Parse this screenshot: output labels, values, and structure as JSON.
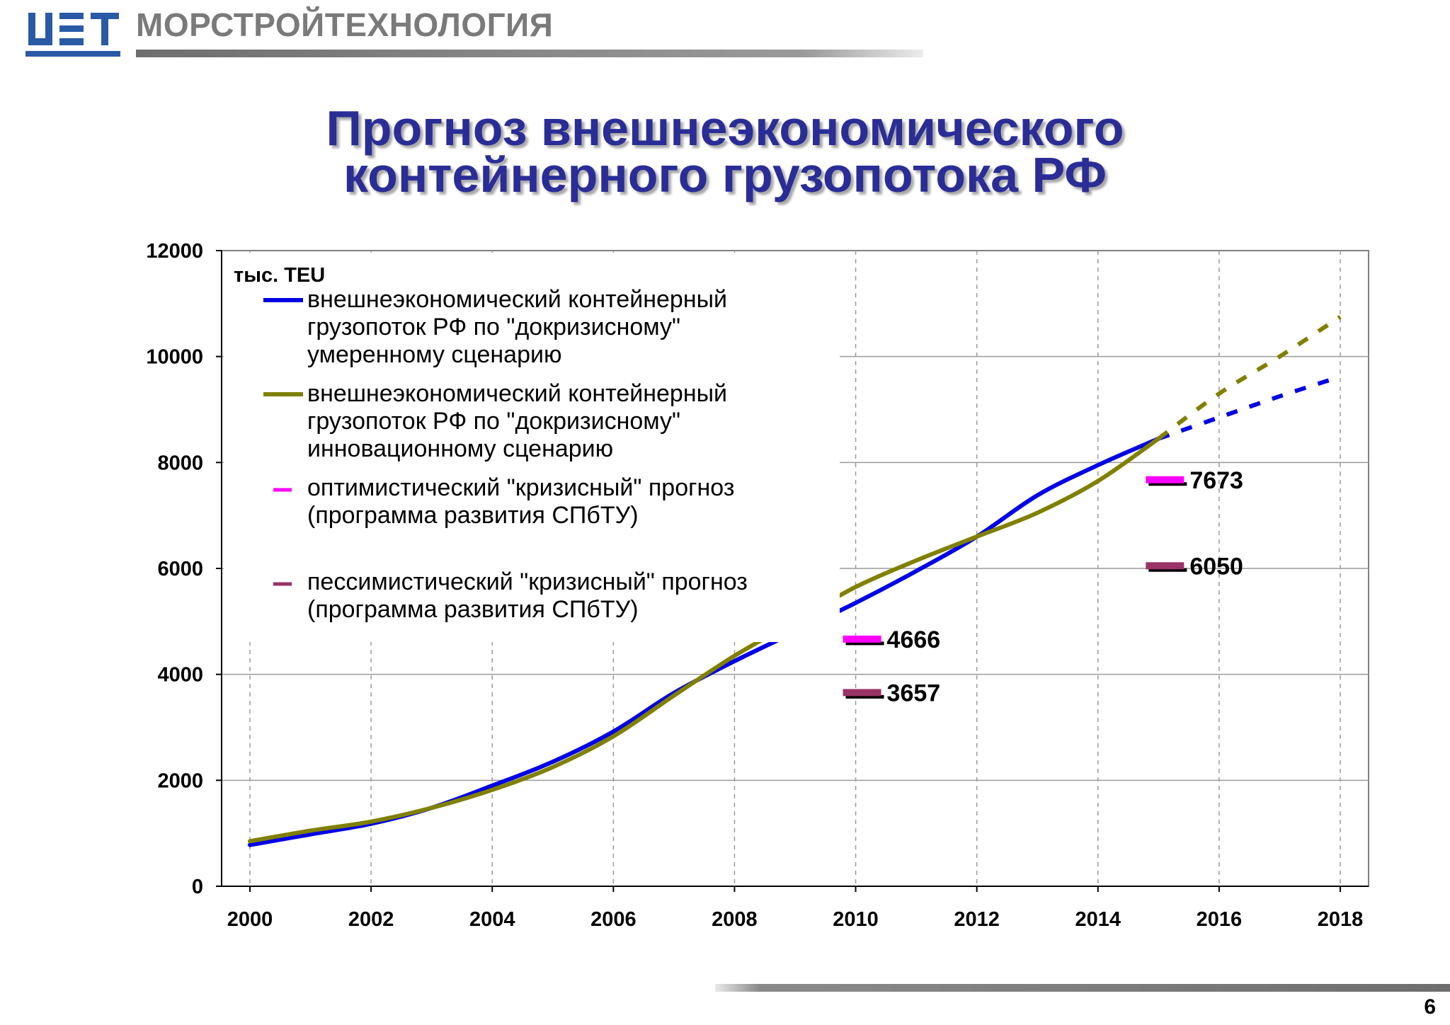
{
  "header": {
    "company": "МОРСТРОЙТЕХНОЛОГИЯ",
    "logo": "mst-logo"
  },
  "title_line1": "Прогноз внешнеэкономического",
  "title_line2": "контейнерного грузопотока РФ",
  "page_number": "6",
  "colors": {
    "title": "#2a2d96",
    "logo": "#2a5aa6",
    "moderate": "#0000e6",
    "innovative": "#808000",
    "optimistic": "#ff00ff",
    "pessimistic": "#993366"
  },
  "chart_data": {
    "type": "line",
    "unit_label": "тыс. TEU",
    "xlim": [
      2000,
      2018
    ],
    "ylim": [
      0,
      12000
    ],
    "x_ticks": [
      "2000",
      "2002",
      "2004",
      "2006",
      "2008",
      "2010",
      "2012",
      "2014",
      "2016",
      "2018"
    ],
    "y_ticks": [
      "0",
      "2000",
      "4000",
      "6000",
      "8000",
      "10000",
      "12000"
    ],
    "grid": true,
    "legend_position": "top-left",
    "series": [
      {
        "name": "внешнеэкономический контейнерный грузопоток РФ по \"докризисному\" умеренному сценарию",
        "name_lines": [
          "внешнеэкономический контейнерный",
          "грузопоток РФ по \"докризисному\"",
          "умеренному сценарию"
        ],
        "color": "#0000e6",
        "x": [
          2000,
          2001,
          2002,
          2003,
          2004,
          2005,
          2006,
          2007,
          2008,
          2009,
          2010,
          2011,
          2012,
          2013,
          2014,
          2015
        ],
        "y": [
          780,
          980,
          1180,
          1480,
          1900,
          2350,
          2920,
          3650,
          4250,
          4800,
          5350,
          5950,
          6600,
          7380,
          7950,
          8450
        ],
        "projection_x": [
          2015,
          2016,
          2017,
          2018
        ],
        "projection_y": [
          8450,
          8850,
          9250,
          9620
        ]
      },
      {
        "name": "внешнеэкономический контейнерный грузопоток РФ по \"докризисному\" инновационному сценарию",
        "name_lines": [
          "внешнеэкономический контейнерный",
          "грузопоток РФ по \"докризисному\"",
          "инновационному сценарию"
        ],
        "color": "#808000",
        "x": [
          2000,
          2001,
          2002,
          2003,
          2004,
          2005,
          2006,
          2007,
          2008,
          2009,
          2010,
          2011,
          2012,
          2013,
          2014,
          2015
        ],
        "y": [
          850,
          1050,
          1220,
          1480,
          1820,
          2250,
          2830,
          3600,
          4350,
          5000,
          5650,
          6150,
          6600,
          7050,
          7650,
          8450
        ],
        "projection_x": [
          2015,
          2016,
          2017,
          2018
        ],
        "projection_y": [
          8450,
          9300,
          10000,
          10750
        ]
      },
      {
        "name": "оптимистический \"кризисный\" прогноз (программа развития СПбТУ)",
        "name_lines": [
          "оптимистический \"кризисный\" прогноз",
          "(программа развития СПбТУ)"
        ],
        "color": "#ff00ff",
        "x": [
          2010,
          2015
        ],
        "y": [
          4666,
          7673
        ],
        "labels": [
          "4666",
          "7673"
        ]
      },
      {
        "name": "пессимистический \"кризисный\" прогноз (программа развития СПбТУ)",
        "name_lines": [
          "пессимистический \"кризисный\" прогноз",
          "(программа развития СПбТУ)"
        ],
        "color": "#993366",
        "x": [
          2010,
          2015
        ],
        "y": [
          3657,
          6050
        ],
        "labels": [
          "3657",
          "6050"
        ]
      }
    ]
  }
}
